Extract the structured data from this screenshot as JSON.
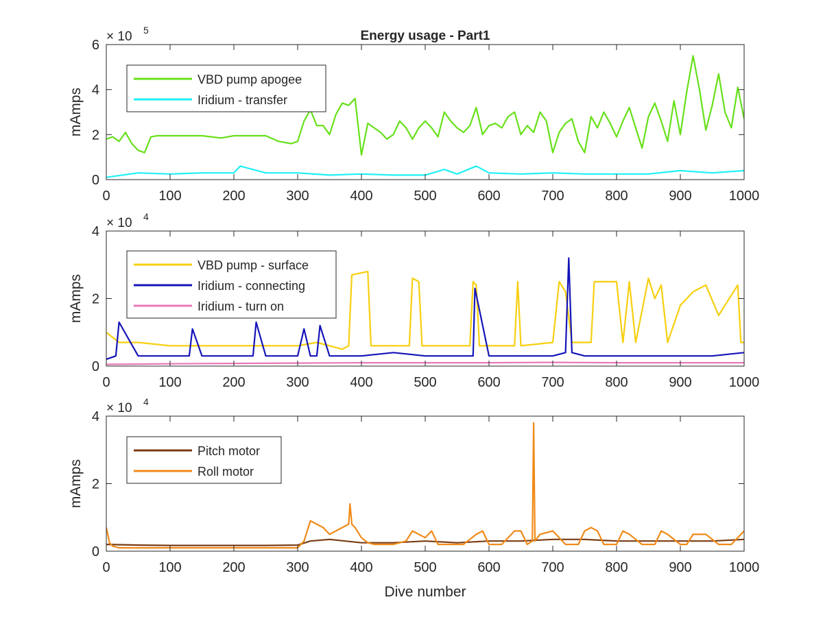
{
  "figure": {
    "title": "Energy usage - Part1",
    "xlabel": "Dive number"
  },
  "chart_data": [
    {
      "type": "line",
      "title": "Energy usage - Part1",
      "xlabel": "",
      "ylabel": "mAmps",
      "xlim": [
        0,
        1000
      ],
      "ylim": [
        0,
        600000
      ],
      "x_ticks": [
        0,
        100,
        200,
        300,
        400,
        500,
        600,
        700,
        800,
        900,
        1000
      ],
      "x_tick_labels": [
        "0",
        "100",
        "200",
        "300",
        "400",
        "500",
        "600",
        "700",
        "800",
        "900",
        "1000"
      ],
      "y_ticks": [
        0,
        200000,
        400000,
        600000
      ],
      "y_tick_labels": [
        "0",
        "2",
        "4",
        "6"
      ],
      "exponent_base": "× 10",
      "exponent_power": "5",
      "grid": false,
      "legend_position": "top-left",
      "series": [
        {
          "name": "VBD pump apogee",
          "color": "#66e019",
          "x": [
            0,
            10,
            20,
            30,
            40,
            50,
            60,
            70,
            80,
            100,
            150,
            180,
            200,
            250,
            270,
            290,
            300,
            310,
            320,
            330,
            340,
            350,
            360,
            370,
            380,
            390,
            400,
            410,
            420,
            430,
            440,
            450,
            460,
            470,
            480,
            490,
            500,
            510,
            520,
            530,
            540,
            550,
            560,
            570,
            580,
            590,
            600,
            610,
            620,
            630,
            640,
            650,
            660,
            670,
            680,
            690,
            700,
            710,
            720,
            730,
            740,
            750,
            760,
            770,
            780,
            790,
            800,
            810,
            820,
            830,
            840,
            850,
            860,
            870,
            880,
            890,
            900,
            910,
            920,
            930,
            940,
            950,
            960,
            970,
            980,
            990,
            1000
          ],
          "values": [
            180000,
            190000,
            170000,
            210000,
            160000,
            130000,
            120000,
            190000,
            195000,
            195000,
            195000,
            185000,
            195000,
            195000,
            170000,
            160000,
            170000,
            260000,
            310000,
            240000,
            240000,
            200000,
            290000,
            340000,
            330000,
            360000,
            110000,
            250000,
            230000,
            210000,
            180000,
            200000,
            260000,
            230000,
            180000,
            230000,
            260000,
            230000,
            190000,
            300000,
            260000,
            230000,
            210000,
            240000,
            320000,
            200000,
            240000,
            250000,
            230000,
            280000,
            300000,
            200000,
            240000,
            210000,
            300000,
            260000,
            120000,
            210000,
            250000,
            270000,
            170000,
            120000,
            280000,
            230000,
            300000,
            250000,
            190000,
            260000,
            320000,
            230000,
            140000,
            280000,
            340000,
            260000,
            170000,
            350000,
            200000,
            390000,
            550000,
            400000,
            220000,
            330000,
            470000,
            300000,
            230000,
            410000,
            270000
          ]
        },
        {
          "name": "Iridium - transfer",
          "color": "#20f0f4",
          "x": [
            0,
            50,
            100,
            150,
            200,
            210,
            250,
            300,
            350,
            400,
            450,
            500,
            530,
            550,
            580,
            600,
            650,
            700,
            750,
            800,
            850,
            900,
            950,
            1000
          ],
          "values": [
            10000,
            30000,
            25000,
            30000,
            30000,
            60000,
            30000,
            30000,
            20000,
            25000,
            20000,
            20000,
            45000,
            25000,
            60000,
            30000,
            25000,
            30000,
            25000,
            25000,
            25000,
            40000,
            30000,
            40000
          ]
        }
      ]
    },
    {
      "type": "line",
      "title": "",
      "xlabel": "",
      "ylabel": "mAmps",
      "xlim": [
        0,
        1000
      ],
      "ylim": [
        0,
        40000
      ],
      "x_ticks": [
        0,
        100,
        200,
        300,
        400,
        500,
        600,
        700,
        800,
        900,
        1000
      ],
      "x_tick_labels": [
        "0",
        "100",
        "200",
        "300",
        "400",
        "500",
        "600",
        "700",
        "800",
        "900",
        "1000"
      ],
      "y_ticks": [
        0,
        20000,
        40000
      ],
      "y_tick_labels": [
        "0",
        "2",
        "4"
      ],
      "exponent_base": "× 10",
      "exponent_power": "4",
      "grid": false,
      "legend_position": "top-left",
      "series": [
        {
          "name": "VBD pump - surface",
          "color": "#f7cf0f",
          "x": [
            0,
            20,
            50,
            100,
            150,
            200,
            250,
            300,
            330,
            370,
            380,
            385,
            410,
            415,
            450,
            475,
            480,
            490,
            495,
            550,
            570,
            575,
            580,
            585,
            640,
            645,
            650,
            700,
            710,
            720,
            730,
            760,
            765,
            800,
            810,
            820,
            830,
            850,
            860,
            870,
            880,
            900,
            920,
            940,
            960,
            990,
            995,
            1000
          ],
          "values": [
            10000,
            7000,
            7000,
            6000,
            6000,
            6000,
            6000,
            6000,
            7000,
            5000,
            6000,
            27000,
            28000,
            6000,
            6000,
            6000,
            26000,
            25000,
            6000,
            6000,
            6000,
            25000,
            24000,
            6000,
            6000,
            25000,
            6000,
            7000,
            25000,
            22000,
            7000,
            7000,
            25000,
            25000,
            7000,
            25000,
            7000,
            26000,
            20000,
            24000,
            7000,
            18000,
            22000,
            24000,
            15000,
            24000,
            7000,
            7000
          ]
        },
        {
          "name": "Iridium - connecting",
          "color": "#1414b8",
          "x": [
            0,
            15,
            20,
            50,
            100,
            130,
            135,
            150,
            200,
            230,
            235,
            250,
            300,
            310,
            320,
            330,
            335,
            350,
            400,
            450,
            500,
            550,
            575,
            578,
            600,
            650,
            700,
            720,
            725,
            730,
            750,
            800,
            850,
            900,
            950,
            1000
          ],
          "values": [
            2000,
            3000,
            13000,
            3000,
            3000,
            3000,
            11000,
            3000,
            3000,
            3000,
            13000,
            3000,
            3000,
            11000,
            3000,
            3000,
            12000,
            3000,
            3000,
            4000,
            3000,
            3000,
            3000,
            23000,
            3000,
            3000,
            3000,
            4000,
            32000,
            4000,
            3000,
            3000,
            3000,
            3000,
            3000,
            4000
          ]
        },
        {
          "name": "Iridium - turn on",
          "color": "#e879b6",
          "x": [
            0,
            100,
            200,
            300,
            400,
            500,
            600,
            700,
            800,
            900,
            1000
          ],
          "values": [
            500,
            700,
            800,
            900,
            1000,
            1000,
            1000,
            1100,
            1000,
            1000,
            1000
          ]
        }
      ]
    },
    {
      "type": "line",
      "title": "",
      "xlabel": "Dive number",
      "ylabel": "mAmps",
      "xlim": [
        0,
        1000
      ],
      "ylim": [
        0,
        40000
      ],
      "x_ticks": [
        0,
        100,
        200,
        300,
        400,
        500,
        600,
        700,
        800,
        900,
        1000
      ],
      "x_tick_labels": [
        "0",
        "100",
        "200",
        "300",
        "400",
        "500",
        "600",
        "700",
        "800",
        "900",
        "1000"
      ],
      "y_ticks": [
        0,
        20000,
        40000
      ],
      "y_tick_labels": [
        "0",
        "2",
        "4"
      ],
      "exponent_base": "× 10",
      "exponent_power": "4",
      "grid": false,
      "legend_position": "top-left",
      "series": [
        {
          "name": "Pitch motor",
          "color": "#7a3b12",
          "x": [
            0,
            50,
            100,
            150,
            200,
            250,
            300,
            320,
            350,
            400,
            450,
            500,
            550,
            600,
            650,
            700,
            750,
            800,
            850,
            900,
            950,
            1000
          ],
          "values": [
            2000,
            1800,
            1700,
            1700,
            1700,
            1700,
            1800,
            3000,
            3500,
            2500,
            2500,
            3000,
            2500,
            3000,
            3000,
            3500,
            3500,
            3000,
            3000,
            3000,
            3000,
            3500
          ]
        },
        {
          "name": "Roll motor",
          "color": "#f08a19",
          "x": [
            0,
            5,
            10,
            20,
            50,
            100,
            150,
            200,
            250,
            300,
            310,
            320,
            340,
            350,
            370,
            380,
            382,
            385,
            390,
            400,
            410,
            420,
            450,
            470,
            480,
            500,
            510,
            520,
            530,
            560,
            580,
            590,
            600,
            620,
            640,
            650,
            660,
            668,
            670,
            672,
            680,
            700,
            720,
            740,
            750,
            760,
            770,
            780,
            800,
            810,
            820,
            840,
            860,
            870,
            880,
            900,
            910,
            920,
            940,
            960,
            980,
            1000
          ],
          "values": [
            7000,
            2500,
            1500,
            1000,
            1000,
            1000,
            1000,
            1000,
            1000,
            1000,
            3000,
            9000,
            7000,
            5000,
            7000,
            8000,
            14000,
            8000,
            7000,
            4000,
            2500,
            2000,
            2000,
            3000,
            6000,
            4000,
            6000,
            2000,
            2000,
            2000,
            5000,
            6000,
            2000,
            2000,
            6000,
            6000,
            2000,
            3000,
            38000,
            3000,
            5000,
            6000,
            2000,
            2000,
            6000,
            7000,
            6000,
            2000,
            2000,
            6000,
            5000,
            2000,
            2000,
            6000,
            5000,
            2000,
            2000,
            5000,
            5000,
            2000,
            2000,
            6000
          ]
        }
      ]
    }
  ]
}
